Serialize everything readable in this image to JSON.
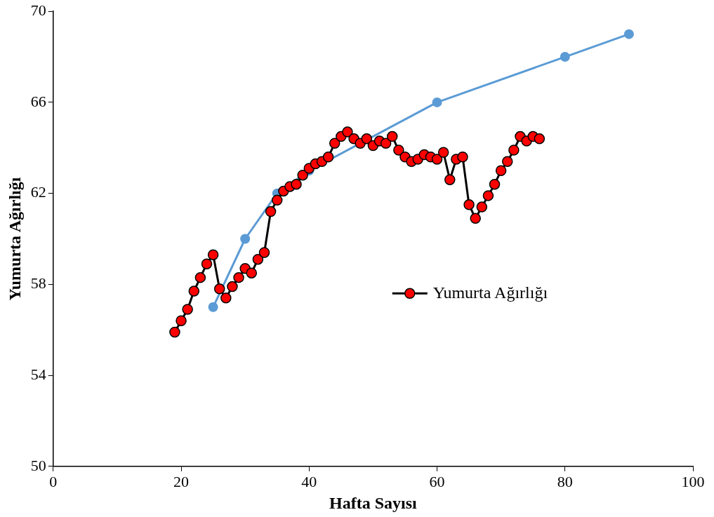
{
  "chart_data": {
    "type": "line",
    "xlabel": "Hafta Sayısı",
    "ylabel": "Yumurta Ağırlığı",
    "xlim": [
      0,
      100
    ],
    "xticks": [
      0,
      20,
      40,
      60,
      80,
      100
    ],
    "ylim": [
      50,
      70
    ],
    "yticks": [
      50,
      54,
      58,
      62,
      66,
      70
    ],
    "grid": false,
    "legend": "right",
    "marker": "circle",
    "line_style": "solid",
    "series": [
      {
        "color": "#5b9bd5",
        "x": [
          25,
          30,
          35,
          40,
          60,
          80,
          90
        ],
        "values": [
          57,
          60,
          62,
          63,
          66,
          68,
          69
        ]
      },
      {
        "name": "Yumurta Ağırlığı",
        "color": "#ff0000",
        "x": [
          19,
          20,
          21,
          22,
          23,
          24,
          25,
          26,
          27,
          28,
          29,
          30,
          31,
          32,
          33,
          34,
          35,
          36,
          37,
          38,
          39,
          40,
          41,
          42,
          43,
          44,
          45,
          46,
          47,
          48,
          49,
          50,
          51,
          52,
          53,
          54,
          55,
          56,
          57,
          58,
          59,
          60,
          61,
          62,
          63,
          64,
          65,
          66,
          67,
          68,
          69,
          70,
          71,
          72,
          73,
          74,
          75,
          76
        ],
        "values": [
          55.9,
          56.4,
          56.9,
          57.7,
          58.3,
          58.9,
          59.3,
          57.8,
          57.4,
          57.9,
          58.3,
          58.7,
          58.5,
          59.1,
          59.4,
          61.2,
          61.7,
          62.1,
          62.3,
          62.4,
          62.8,
          63.1,
          63.3,
          63.4,
          63.6,
          64.2,
          64.5,
          64.7,
          64.4,
          64.2,
          64.4,
          64.1,
          64.3,
          64.2,
          64.5,
          63.9,
          63.6,
          63.4,
          63.5,
          63.7,
          63.6,
          63.5,
          63.8,
          62.6,
          63.5,
          63.6,
          61.5,
          60.9,
          61.4,
          61.9,
          62.4,
          63.0,
          63.4,
          63.9,
          64.5,
          64.3,
          64.5,
          64.4
        ]
      }
    ]
  }
}
